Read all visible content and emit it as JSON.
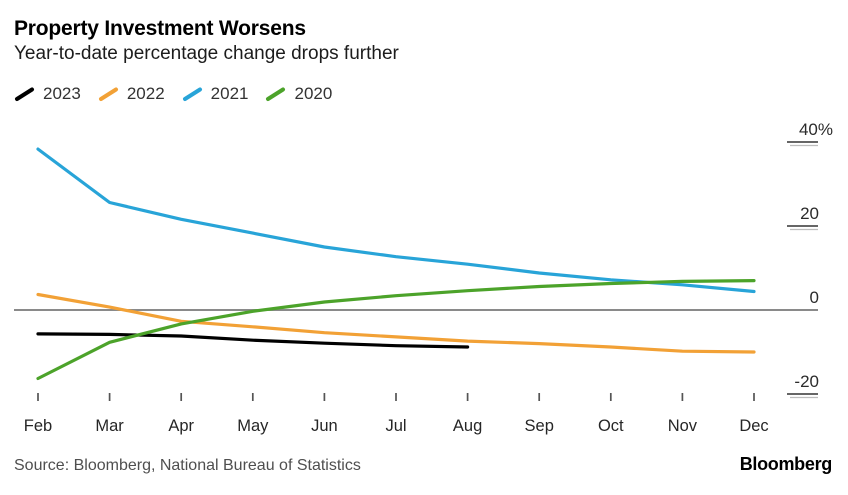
{
  "header": {
    "title": "Property Investment Worsens",
    "subtitle": "Year-to-date percentage change drops further"
  },
  "legend": [
    {
      "label": "2023",
      "color": "#000000"
    },
    {
      "label": "2022",
      "color": "#F2A136"
    },
    {
      "label": "2021",
      "color": "#28A4D8"
    },
    {
      "label": "2020",
      "color": "#4CA32A"
    }
  ],
  "footer": {
    "source": "Source: Bloomberg, National Bureau of Statistics",
    "brand": "Bloomberg"
  },
  "colors": {
    "zero_line": "#8a8a8a",
    "tick": "#666666",
    "tick_ghost": "#bdbdbd",
    "axis_text": "#2b2b2b"
  },
  "chart_data": {
    "type": "line",
    "title": "Property Investment Worsens",
    "subtitle": "Year-to-date percentage change drops further",
    "xlabel": "",
    "ylabel": "Year-to-date percentage change",
    "categories": [
      "Feb",
      "Mar",
      "Apr",
      "May",
      "Jun",
      "Jul",
      "Aug",
      "Sep",
      "Oct",
      "Nov",
      "Dec"
    ],
    "ylim": [
      -25,
      45
    ],
    "yticks": [
      {
        "value": 40,
        "label": "40%"
      },
      {
        "value": 20,
        "label": "20"
      },
      {
        "value": 0,
        "label": "0"
      },
      {
        "value": -20,
        "label": "-20"
      }
    ],
    "grid": false,
    "zero_line": true,
    "legend_position": "top-left",
    "series": [
      {
        "name": "2023",
        "color": "#000000",
        "values": [
          -5.7,
          -5.8,
          -6.2,
          -7.2,
          -7.9,
          -8.5,
          -8.8
        ]
      },
      {
        "name": "2022",
        "color": "#F2A136",
        "values": [
          3.7,
          0.7,
          -2.7,
          -4.0,
          -5.4,
          -6.4,
          -7.4,
          -8.0,
          -8.8,
          -9.8,
          -10.0
        ]
      },
      {
        "name": "2021",
        "color": "#28A4D8",
        "values": [
          38.3,
          25.6,
          21.6,
          18.3,
          15.0,
          12.7,
          10.9,
          8.8,
          7.2,
          6.0,
          4.4
        ]
      },
      {
        "name": "2020",
        "color": "#4CA32A",
        "values": [
          -16.3,
          -7.7,
          -3.3,
          -0.3,
          1.9,
          3.4,
          4.6,
          5.6,
          6.3,
          6.8,
          7.0
        ]
      }
    ]
  }
}
